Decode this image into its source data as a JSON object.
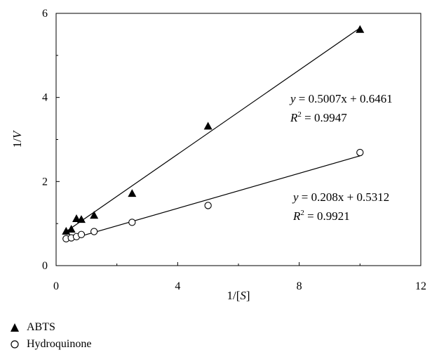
{
  "chart_data": {
    "type": "scatter",
    "xlabel": "1/[S]",
    "ylabel": "1/V",
    "xlim": [
      0,
      12
    ],
    "ylim": [
      0,
      6
    ],
    "xticks": [
      0,
      4,
      8,
      12
    ],
    "yticks": [
      0,
      2,
      4,
      6
    ],
    "legend_position": "bottom-left",
    "series": [
      {
        "name": "ABTS",
        "marker": "filled-triangle",
        "color": "#000000",
        "x": [
          0.33,
          0.5,
          0.67,
          0.83,
          1.25,
          2.5,
          5.0,
          10.0
        ],
        "y": [
          0.82,
          0.87,
          1.12,
          1.1,
          1.2,
          1.72,
          3.32,
          5.62
        ],
        "fit": {
          "slope": 0.5007,
          "intercept": 0.6461
        },
        "equation": {
          "eq_lhs": "y",
          "eq_rhs": " = 0.5007x + 0.6461",
          "r_label": "R",
          "r_sup": "2",
          "r_value": " = 0.9947"
        }
      },
      {
        "name": "Hydroquinone",
        "marker": "open-circle",
        "color": "#000000",
        "x": [
          0.33,
          0.5,
          0.67,
          0.83,
          1.25,
          2.5,
          5.0,
          10.0
        ],
        "y": [
          0.64,
          0.66,
          0.69,
          0.74,
          0.81,
          1.03,
          1.43,
          2.69
        ],
        "fit": {
          "slope": 0.208,
          "intercept": 0.5312
        },
        "equation": {
          "eq_lhs": "y",
          "eq_rhs": " = 0.208x + 0.5312",
          "r_label": "R",
          "r_sup": "2",
          "r_value": " = 0.9921"
        }
      }
    ]
  }
}
